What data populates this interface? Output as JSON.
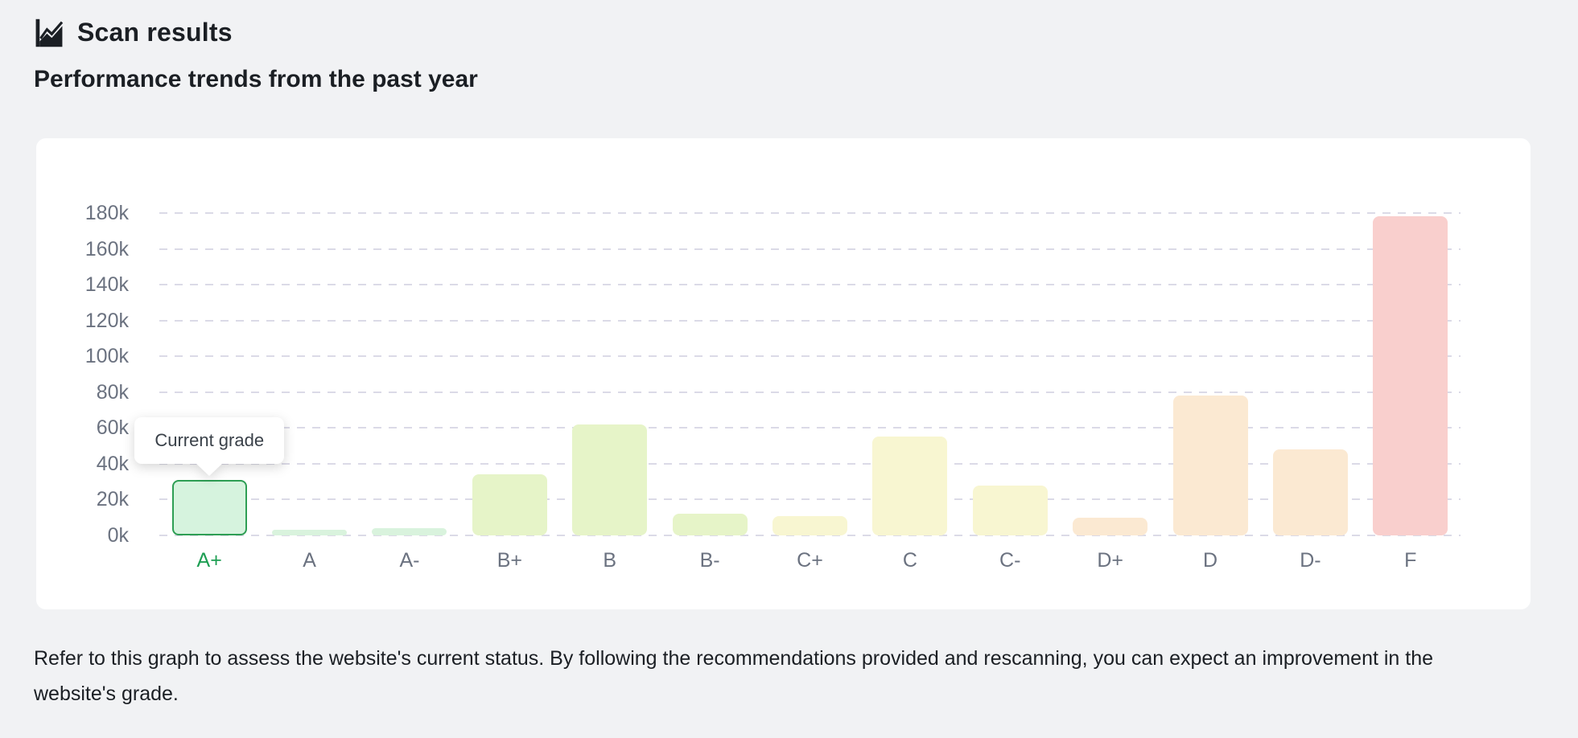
{
  "header": {
    "title": "Scan results",
    "subtitle": "Performance trends from the past year"
  },
  "tooltip": {
    "label": "Current grade"
  },
  "description": "Refer to this graph to assess the website's current status. By following the recommendations provided and rescanning, you can expect an improvement in the website's grade.",
  "chart_data": {
    "type": "bar",
    "title": "Performance trends from the past year",
    "xlabel": "",
    "ylabel": "",
    "categories": [
      "A+",
      "A",
      "A-",
      "B+",
      "B",
      "B-",
      "C+",
      "C",
      "C-",
      "D+",
      "D",
      "D-",
      "F"
    ],
    "values": [
      31000,
      3000,
      4000,
      34000,
      62000,
      12000,
      11000,
      55000,
      28000,
      10000,
      78000,
      48000,
      178000
    ],
    "yticks": [
      "0k",
      "20k",
      "40k",
      "60k",
      "80k",
      "100k",
      "120k",
      "140k",
      "160k",
      "180k"
    ],
    "ylim": [
      0,
      180000
    ],
    "grid": "dashed-horizontal",
    "legend": "none",
    "highlight": {
      "category": "A+",
      "label": "Current grade"
    },
    "bar_colors": [
      "#d6f3de",
      "#d9f3dd",
      "#d9f3dd",
      "#e6f4c8",
      "#e6f4c8",
      "#e6f4c8",
      "#f8f6d1",
      "#f8f6d1",
      "#f8f6d1",
      "#fbe9d2",
      "#fbe9d2",
      "#fbe9d2",
      "#f9cfcd"
    ]
  },
  "colors": {
    "accent_green_border": "#2e9e54",
    "accent_green_label": "#1d9e53",
    "grid": "#dbdae7",
    "axis_label": "#6b7280",
    "background": "#f1f2f4",
    "card": "#ffffff",
    "text": "#1b1f24"
  }
}
